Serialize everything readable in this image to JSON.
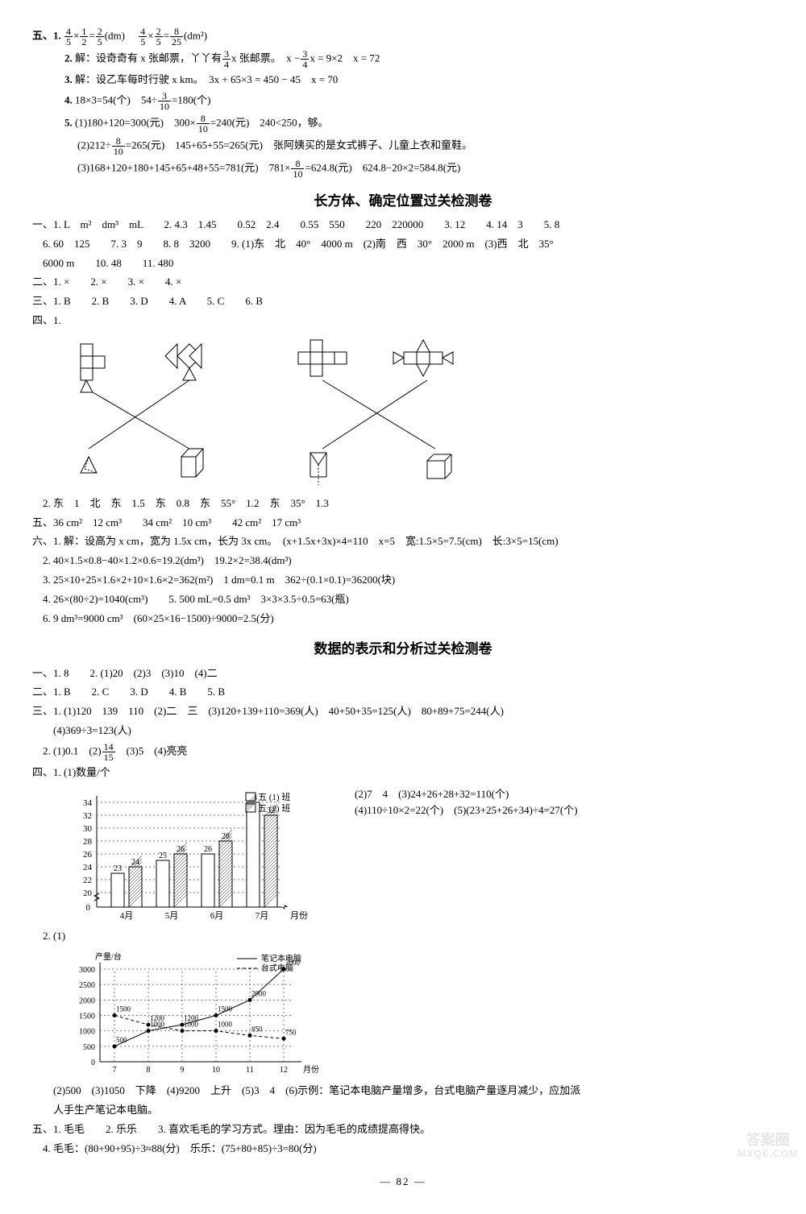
{
  "sec5_top": {
    "q1_a": "(dm)",
    "q1_b": "(dm²)",
    "q2": "解：设奇奇有 x 张邮票，丫丫有",
    "q2b": "x 张邮票。",
    "q2c": "x −",
    "q2d": "x = 9×2　x = 72",
    "q3": "解：设乙车每时行驶 x km。　3x + 65×3 = 450 − 45　x = 70",
    "q4a": "18×3=54(个)　54÷",
    "q4b": "=180(个)",
    "q5_1a": "(1)180+120=300(元)　300×",
    "q5_1b": "=240(元)　240<250，够。",
    "q5_2a": "(2)212÷",
    "q5_2b": "=265(元)　145+65+55=265(元)　张阿姨买的是女式裤子、儿童上衣和童鞋。",
    "q5_3a": "(3)168+120+180+145+65+48+55=781(元)　781×",
    "q5_3b": "=624.8(元)　624.8−20×2=584.8(元)"
  },
  "title_a": "长方体、确定位置过关检测卷",
  "sec_a": {
    "l1": "一、1. L　m²　dm³　mL　　2. 4.3　1.45　　0.52　2.4　　0.55　550　　220　220000　　3. 12　　4. 14　3　　5. 8",
    "l2": "　6. 60　125　　7. 3　9　　8. 8　3200　　9. (1)东　北　40°　4000 m　(2)南　西　30°　2000 m　(3)西　北　35°",
    "l3": "　6000 m　　10. 48　　11. 480",
    "l4": "二、1. ×　　2. ×　　3. ×　　4. ×",
    "l5": "三、1. B　　2. B　　3. D　　4. A　　5. C　　6. B",
    "l6": "四、1.",
    "l7": "　2. 东　1　北　东　1.5　东　0.8　东　55°　1.2　东　35°　1.3",
    "l8": "五、36 cm²　12 cm³　　34 cm²　10 cm³　　42 cm²　17 cm³",
    "l9": "六、1. 解：设高为 x cm，宽为 1.5x cm，长为 3x cm。　(x+1.5x+3x)×4=110　x=5　宽:1.5×5=7.5(cm)　长:3×5=15(cm)",
    "l10": "　2. 40×1.5×0.8−40×1.2×0.6=19.2(dm³)　19.2×2=38.4(dm³)",
    "l11": "　3. 25×10+25×1.6×2+10×1.6×2=362(m²)　1 dm=0.1 m　362÷(0.1×0.1)=36200(块)",
    "l12": "　4. 26×(80÷2)=1040(cm³)　　5. 500 mL=0.5 dm³　3×3×3.5÷0.5=63(瓶)",
    "l13": "　6. 9 dm³=9000 cm³　(60×25×16−1500)÷9000=2.5(分)"
  },
  "title_b": "数据的表示和分析过关检测卷",
  "sec_b": {
    "l1": "一、1. 8　　2. (1)20　(2)3　(3)10　(4)二",
    "l2": "二、1. B　　2. C　　3. D　　4. B　　5. B",
    "l3": "三、1. (1)120　139　110　(2)二　三　(3)120+139+110=369(人)　40+50+35=125(人)　80+89+75=244(人)",
    "l4": "　　(4)369÷3=123(人)",
    "l5a": "　2. (1)0.1　(2)",
    "l5b": "　(3)5　(4)亮亮",
    "l6": "四、1. (1)数量/个",
    "chart1_side": "(2)7　4　(3)24+26+28+32=110(个)\n(4)110÷10×2=22(个)　(5)(23+25+26+34)÷4=27(个)",
    "l7": "　2. (1)",
    "l8": "　　(2)500　(3)1050　下降　(4)9200　上升　(5)3　4　(6)示例：笔记本电脑产量增多，台式电脑产量逐月减少，应加派",
    "l9": "　　人手生产笔记本电脑。",
    "l10": "五、1. 毛毛　　2. 乐乐　　3. 喜欢毛毛的学习方式。理由：因为毛毛的成绩提高得快。",
    "l11": "　4. 毛毛：(80+90+95)÷3≈88(分)　乐乐：(75+80+85)÷3=80(分)"
  },
  "chart1": {
    "type": "bar",
    "y_ticks": [
      0,
      20,
      22,
      24,
      26,
      28,
      30,
      32,
      34
    ],
    "categories": [
      "4月",
      "5月",
      "6月",
      "7月"
    ],
    "legend": [
      "五 (1) 班",
      "五 (2) 班"
    ],
    "series_a": [
      23,
      25,
      26,
      34
    ],
    "series_b": [
      24,
      26,
      28,
      32
    ],
    "colors": {
      "bar_fill": "#ffffff",
      "bar_stroke": "#000000",
      "grid": "#777777",
      "text": "#000000"
    },
    "xlabel": "月份"
  },
  "chart2": {
    "type": "line",
    "y_ticks": [
      0,
      500,
      1000,
      1500,
      2000,
      2500,
      3000
    ],
    "x_ticks": [
      "7",
      "8",
      "9",
      "10",
      "11",
      "12"
    ],
    "legend": [
      "笔记本电脑",
      "台式电脑"
    ],
    "series_laptop": [
      500,
      1000,
      1200,
      1500,
      2000,
      3000
    ],
    "series_desktop": [
      1500,
      1200,
      1000,
      1000,
      850,
      750
    ],
    "label_points_laptop": [
      "500",
      "1000",
      "1200",
      "1500",
      "2000",
      "3000"
    ],
    "label_points_desktop": [
      "1500",
      "1200",
      "1000",
      "1000",
      "850",
      "750"
    ],
    "colors": {
      "line": "#000000",
      "grid": "#777777",
      "text": "#000000"
    },
    "ylabel": "产量/台",
    "xlabel": "月份"
  },
  "page_num": "— 82 —",
  "watermark": {
    "top": "答案圈",
    "bottom": "MXQE.COM"
  }
}
